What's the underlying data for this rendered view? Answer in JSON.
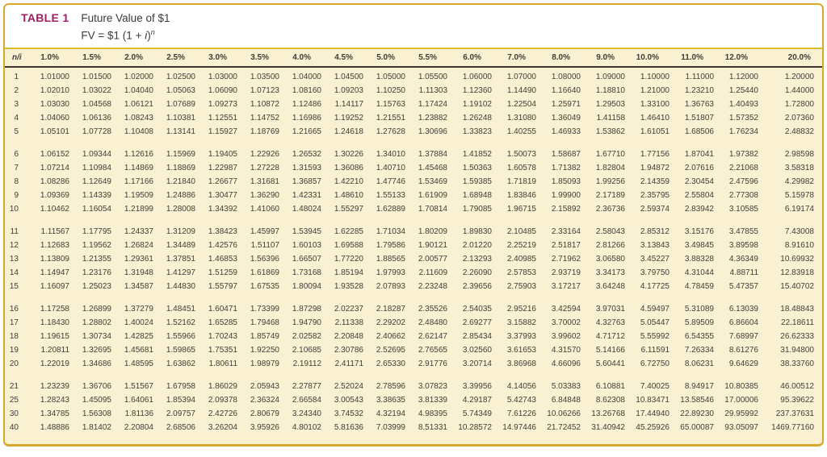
{
  "table": {
    "label": "TABLE 1",
    "title": "Future Value of $1",
    "formula": {
      "pre": "FV = $1 (1 + ",
      "var": "i",
      "close": ")",
      "sup": "n"
    },
    "columns": [
      "n/i",
      "1.0%",
      "1.5%",
      "2.0%",
      "2.5%",
      "3.0%",
      "3.5%",
      "4.0%",
      "4.5%",
      "5.0%",
      "5.5%",
      "6.0%",
      "7.0%",
      "8.0%",
      "9.0%",
      "10.0%",
      "11.0%",
      "12.0%",
      "20.0%"
    ],
    "colors": {
      "background": "#FAF0D2",
      "border": "#D8A62A",
      "header_divider": "#E2BC2D",
      "label": "#A21D66",
      "text": "#423D37",
      "header_rule": "#3B3630"
    },
    "groups": [
      {
        "rows": [
          {
            "n": "1",
            "values": [
              "1.01000",
              "1.01500",
              "1.02000",
              "1.02500",
              "1.03000",
              "1.03500",
              "1.04000",
              "1.04500",
              "1.05000",
              "1.05500",
              "1.06000",
              "1.07000",
              "1.08000",
              "1.09000",
              "1.10000",
              "1.11000",
              "1.12000",
              "1.20000"
            ]
          },
          {
            "n": "2",
            "values": [
              "1.02010",
              "1.03022",
              "1.04040",
              "1.05063",
              "1.06090",
              "1.07123",
              "1.08160",
              "1.09203",
              "1.10250",
              "1.11303",
              "1.12360",
              "1.14490",
              "1.16640",
              "1.18810",
              "1.21000",
              "1.23210",
              "1.25440",
              "1.44000"
            ]
          },
          {
            "n": "3",
            "values": [
              "1.03030",
              "1.04568",
              "1.06121",
              "1.07689",
              "1.09273",
              "1.10872",
              "1.12486",
              "1.14117",
              "1.15763",
              "1.17424",
              "1.19102",
              "1.22504",
              "1.25971",
              "1.29503",
              "1.33100",
              "1.36763",
              "1.40493",
              "1.72800"
            ]
          },
          {
            "n": "4",
            "values": [
              "1.04060",
              "1.06136",
              "1.08243",
              "1.10381",
              "1.12551",
              "1.14752",
              "1.16986",
              "1.19252",
              "1.21551",
              "1.23882",
              "1.26248",
              "1.31080",
              "1.36049",
              "1.41158",
              "1.46410",
              "1.51807",
              "1.57352",
              "2.07360"
            ]
          },
          {
            "n": "5",
            "values": [
              "1.05101",
              "1.07728",
              "1.10408",
              "1.13141",
              "1.15927",
              "1.18769",
              "1.21665",
              "1.24618",
              "1.27628",
              "1.30696",
              "1.33823",
              "1.40255",
              "1.46933",
              "1.53862",
              "1.61051",
              "1.68506",
              "1.76234",
              "2.48832"
            ]
          }
        ]
      },
      {
        "rows": [
          {
            "n": "6",
            "values": [
              "1.06152",
              "1.09344",
              "1.12616",
              "1.15969",
              "1.19405",
              "1.22926",
              "1.26532",
              "1.30226",
              "1.34010",
              "1.37884",
              "1.41852",
              "1.50073",
              "1.58687",
              "1.67710",
              "1.77156",
              "1.87041",
              "1.97382",
              "2.98598"
            ]
          },
          {
            "n": "7",
            "values": [
              "1.07214",
              "1.10984",
              "1.14869",
              "1.18869",
              "1.22987",
              "1.27228",
              "1.31593",
              "1.36086",
              "1.40710",
              "1.45468",
              "1.50363",
              "1.60578",
              "1.71382",
              "1.82804",
              "1.94872",
              "2.07616",
              "2.21068",
              "3.58318"
            ]
          },
          {
            "n": "8",
            "values": [
              "1.08286",
              "1.12649",
              "1.17166",
              "1.21840",
              "1.26677",
              "1.31681",
              "1.36857",
              "1.42210",
              "1.47746",
              "1.53469",
              "1.59385",
              "1.71819",
              "1.85093",
              "1.99256",
              "2.14359",
              "2.30454",
              "2.47596",
              "4.29982"
            ]
          },
          {
            "n": "9",
            "values": [
              "1.09369",
              "1.14339",
              "1.19509",
              "1.24886",
              "1.30477",
              "1.36290",
              "1.42331",
              "1.48610",
              "1.55133",
              "1.61909",
              "1.68948",
              "1.83846",
              "1.99900",
              "2.17189",
              "2.35795",
              "2.55804",
              "2.77308",
              "5.15978"
            ]
          },
          {
            "n": "10",
            "values": [
              "1.10462",
              "1.16054",
              "1.21899",
              "1.28008",
              "1.34392",
              "1.41060",
              "1.48024",
              "1.55297",
              "1.62889",
              "1.70814",
              "1.79085",
              "1.96715",
              "2.15892",
              "2.36736",
              "2.59374",
              "2.83942",
              "3.10585",
              "6.19174"
            ]
          }
        ]
      },
      {
        "rows": [
          {
            "n": "11",
            "values": [
              "1.11567",
              "1.17795",
              "1.24337",
              "1.31209",
              "1.38423",
              "1.45997",
              "1.53945",
              "1.62285",
              "1.71034",
              "1.80209",
              "1.89830",
              "2.10485",
              "2.33164",
              "2.58043",
              "2.85312",
              "3.15176",
              "3.47855",
              "7.43008"
            ]
          },
          {
            "n": "12",
            "values": [
              "1.12683",
              "1.19562",
              "1.26824",
              "1.34489",
              "1.42576",
              "1.51107",
              "1.60103",
              "1.69588",
              "1.79586",
              "1.90121",
              "2.01220",
              "2.25219",
              "2.51817",
              "2.81266",
              "3.13843",
              "3.49845",
              "3.89598",
              "8.91610"
            ]
          },
          {
            "n": "13",
            "values": [
              "1.13809",
              "1.21355",
              "1.29361",
              "1.37851",
              "1.46853",
              "1.56396",
              "1.66507",
              "1.77220",
              "1.88565",
              "2.00577",
              "2.13293",
              "2.40985",
              "2.71962",
              "3.06580",
              "3.45227",
              "3.88328",
              "4.36349",
              "10.69932"
            ]
          },
          {
            "n": "14",
            "values": [
              "1.14947",
              "1.23176",
              "1.31948",
              "1.41297",
              "1.51259",
              "1.61869",
              "1.73168",
              "1.85194",
              "1.97993",
              "2.11609",
              "2.26090",
              "2.57853",
              "2.93719",
              "3.34173",
              "3.79750",
              "4.31044",
              "4.88711",
              "12.83918"
            ]
          },
          {
            "n": "15",
            "values": [
              "1.16097",
              "1.25023",
              "1.34587",
              "1.44830",
              "1.55797",
              "1.67535",
              "1.80094",
              "1.93528",
              "2.07893",
              "2.23248",
              "2.39656",
              "2.75903",
              "3.17217",
              "3.64248",
              "4.17725",
              "4.78459",
              "5.47357",
              "15.40702"
            ]
          }
        ]
      },
      {
        "rows": [
          {
            "n": "16",
            "values": [
              "1.17258",
              "1.26899",
              "1.37279",
              "1.48451",
              "1.60471",
              "1.73399",
              "1.87298",
              "2.02237",
              "2.18287",
              "2.35526",
              "2.54035",
              "2.95216",
              "3.42594",
              "3.97031",
              "4.59497",
              "5.31089",
              "6.13039",
              "18.48843"
            ]
          },
          {
            "n": "17",
            "values": [
              "1.18430",
              "1.28802",
              "1.40024",
              "1.52162",
              "1.65285",
              "1.79468",
              "1.94790",
              "2.11338",
              "2.29202",
              "2.48480",
              "2.69277",
              "3.15882",
              "3.70002",
              "4.32763",
              "5.05447",
              "5.89509",
              "6.86604",
              "22.18611"
            ]
          },
          {
            "n": "18",
            "values": [
              "1.19615",
              "1.30734",
              "1.42825",
              "1.55966",
              "1.70243",
              "1.85749",
              "2.02582",
              "2.20848",
              "2.40662",
              "2.62147",
              "2.85434",
              "3.37993",
              "3.99602",
              "4.71712",
              "5.55992",
              "6.54355",
              "7.68997",
              "26.62333"
            ]
          },
          {
            "n": "19",
            "values": [
              "1.20811",
              "1.32695",
              "1.45681",
              "1.59865",
              "1.75351",
              "1.92250",
              "2.10685",
              "2.30786",
              "2.52695",
              "2.76565",
              "3.02560",
              "3.61653",
              "4.31570",
              "5.14166",
              "6.11591",
              "7.26334",
              "8.61276",
              "31.94800"
            ]
          },
          {
            "n": "20",
            "values": [
              "1.22019",
              "1.34686",
              "1.48595",
              "1.63862",
              "1.80611",
              "1.98979",
              "2.19112",
              "2.41171",
              "2.65330",
              "2.91776",
              "3.20714",
              "3.86968",
              "4.66096",
              "5.60441",
              "6.72750",
              "8.06231",
              "9.64629",
              "38.33760"
            ]
          }
        ]
      },
      {
        "rows": [
          {
            "n": "21",
            "values": [
              "1.23239",
              "1.36706",
              "1.51567",
              "1.67958",
              "1.86029",
              "2.05943",
              "2.27877",
              "2.52024",
              "2.78596",
              "3.07823",
              "3.39956",
              "4.14056",
              "5.03383",
              "6.10881",
              "7.40025",
              "8.94917",
              "10.80385",
              "46.00512"
            ]
          },
          {
            "n": "25",
            "values": [
              "1.28243",
              "1.45095",
              "1.64061",
              "1.85394",
              "2.09378",
              "2.36324",
              "2.66584",
              "3.00543",
              "3.38635",
              "3.81339",
              "4.29187",
              "5.42743",
              "6.84848",
              "8.62308",
              "10.83471",
              "13.58546",
              "17.00006",
              "95.39622"
            ]
          },
          {
            "n": "30",
            "values": [
              "1.34785",
              "1.56308",
              "1.81136",
              "2.09757",
              "2.42726",
              "2.80679",
              "3.24340",
              "3.74532",
              "4.32194",
              "4.98395",
              "5.74349",
              "7.61226",
              "10.06266",
              "13.26768",
              "17.44940",
              "22.89230",
              "29.95992",
              "237.37631"
            ]
          },
          {
            "n": "40",
            "values": [
              "1.48886",
              "1.81402",
              "2.20804",
              "2.68506",
              "3.26204",
              "3.95926",
              "4.80102",
              "5.81636",
              "7.03999",
              "8.51331",
              "10.28572",
              "14.97446",
              "21.72452",
              "31.40942",
              "45.25926",
              "65.00087",
              "93.05097",
              "1469.77160"
            ]
          }
        ]
      }
    ]
  }
}
